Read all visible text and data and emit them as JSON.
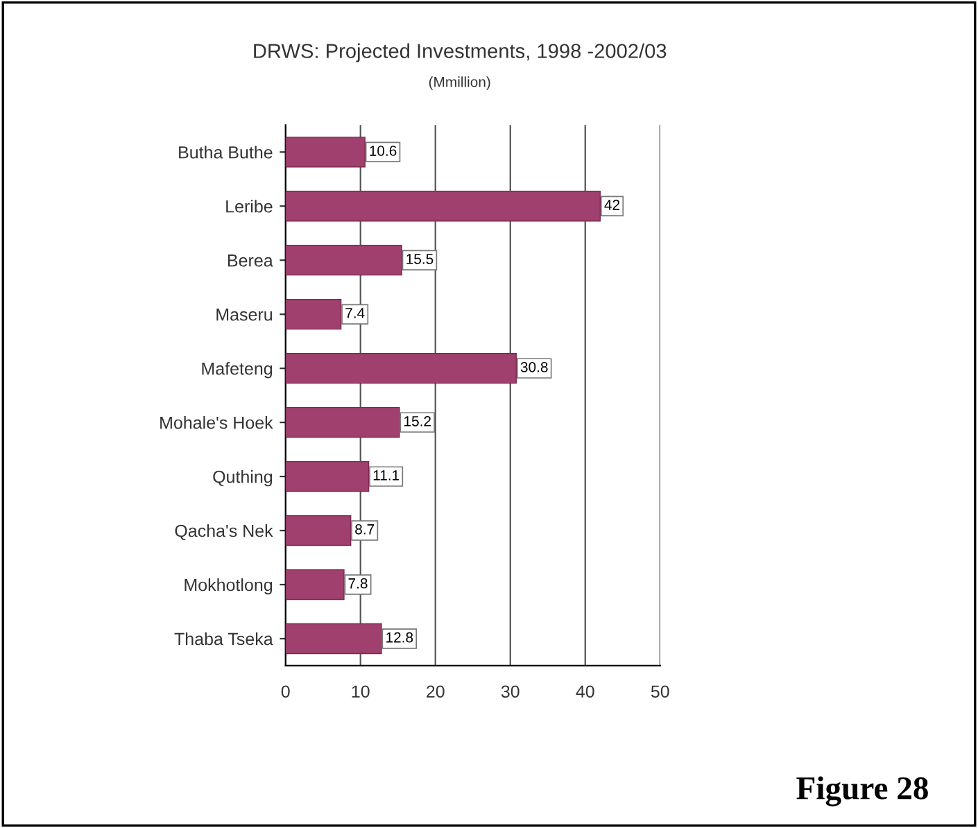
{
  "chart_data": {
    "type": "bar",
    "orientation": "horizontal",
    "title": "DRWS: Projected Investments, 1998 -2002/03",
    "subtitle": "(Mmillion)",
    "categories": [
      "Butha Buthe",
      "Leribe",
      "Berea",
      "Maseru",
      "Mafeteng",
      "Mohale's Hoek",
      "Quthing",
      "Qacha's Nek",
      "Mokhotlong",
      "Thaba Tseka"
    ],
    "values": [
      10.6,
      42,
      15.5,
      7.4,
      30.8,
      15.2,
      11.1,
      8.7,
      7.8,
      12.8
    ],
    "color": "#a0406e",
    "xlim": [
      0,
      50
    ],
    "xticks": [
      0,
      10,
      20,
      30,
      40,
      50
    ],
    "grid": "x",
    "data_labels": true,
    "legend": false,
    "annotations": [
      "Figure 28"
    ]
  }
}
